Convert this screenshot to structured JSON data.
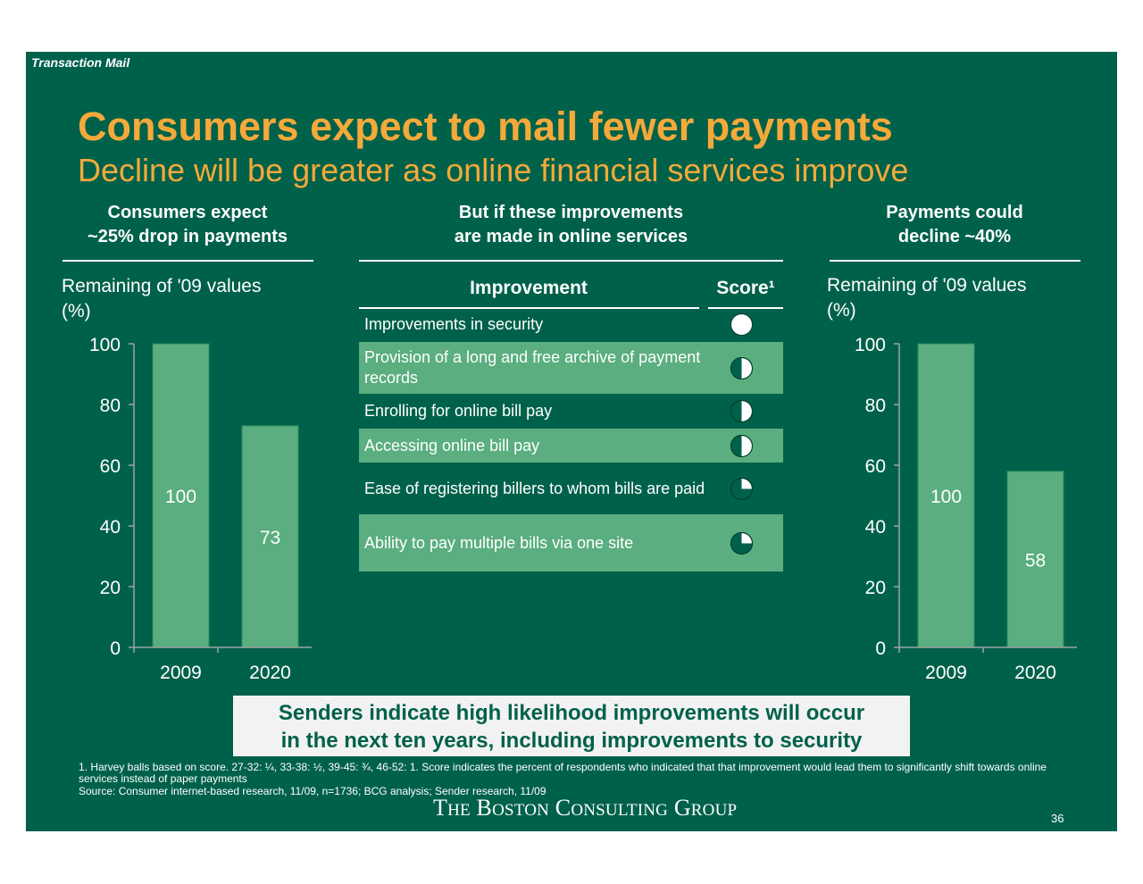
{
  "header": {
    "section_tag": "Transaction Mail",
    "title": "Consumers expect to mail fewer payments",
    "subtitle": "Decline will be greater as online financial services improve"
  },
  "left_column": {
    "heading_line1": "Consumers expect",
    "heading_line2": "~25% drop in payments"
  },
  "middle_column": {
    "heading_line1": "But if these improvements",
    "heading_line2": "are made in online services",
    "col_improvement": "Improvement",
    "col_score": "Score¹",
    "rows": [
      {
        "text": "Improvements in security",
        "score": 1.0
      },
      {
        "text": "Provision of a long and free archive of payment records",
        "score": 0.5
      },
      {
        "text": "Enrolling for online bill pay",
        "score": 0.5
      },
      {
        "text": "Accessing online bill pay",
        "score": 0.5
      },
      {
        "text": "Ease of registering billers to whom bills are paid",
        "score": 0.25
      },
      {
        "text": "Ability to pay multiple bills via one site",
        "score": 0.25
      }
    ]
  },
  "right_column": {
    "heading_line1": "Payments could",
    "heading_line2": "decline ~40%"
  },
  "chart_data": [
    {
      "type": "bar",
      "ylabel_line1": "Remaining of '09 values",
      "ylabel_line2": "(%)",
      "categories": [
        "2009",
        "2020"
      ],
      "values": [
        100,
        73
      ],
      "data_labels": [
        "100",
        "73"
      ],
      "ylim": [
        0,
        100
      ],
      "yticks": [
        "0",
        "20",
        "40",
        "60",
        "80",
        "100"
      ],
      "grid": false,
      "bar_color": "#5aae7f"
    },
    {
      "type": "bar",
      "ylabel_line1": "Remaining of '09 values",
      "ylabel_line2": "(%)",
      "categories": [
        "2009",
        "2020"
      ],
      "values": [
        100,
        58
      ],
      "data_labels": [
        "100",
        "58"
      ],
      "ylim": [
        0,
        100
      ],
      "yticks": [
        "0",
        "20",
        "40",
        "60",
        "80",
        "100"
      ],
      "grid": false,
      "bar_color": "#5aae7f"
    }
  ],
  "callout": {
    "line1": "Senders indicate high likelihood improvements will occur",
    "line2": "in the next ten years, including improvements to security"
  },
  "footnotes": {
    "note1": "1. Harvey balls based on score. 27-32: ¼, 33-38: ½, 39-45: ¾, 46-52: 1. Score indicates the percent of respondents who indicated that that improvement would lead them to significantly shift towards online services instead of paper payments",
    "source": "Source: Consumer internet-based research, 11/09, n=1736; BCG analysis; Sender research, 11/09"
  },
  "logo": {
    "w1_big": "T",
    "w1_small": "HE",
    "w2_big": "B",
    "w2_small": "OSTON",
    "w3_big": "C",
    "w3_small": "ONSULTING",
    "w4_big": "G",
    "w4_small": "ROUP"
  },
  "page_number": "36",
  "colors": {
    "background": "#00614a",
    "accent": "#f4a93a",
    "bar": "#5aae7f",
    "white": "#ffffff"
  }
}
